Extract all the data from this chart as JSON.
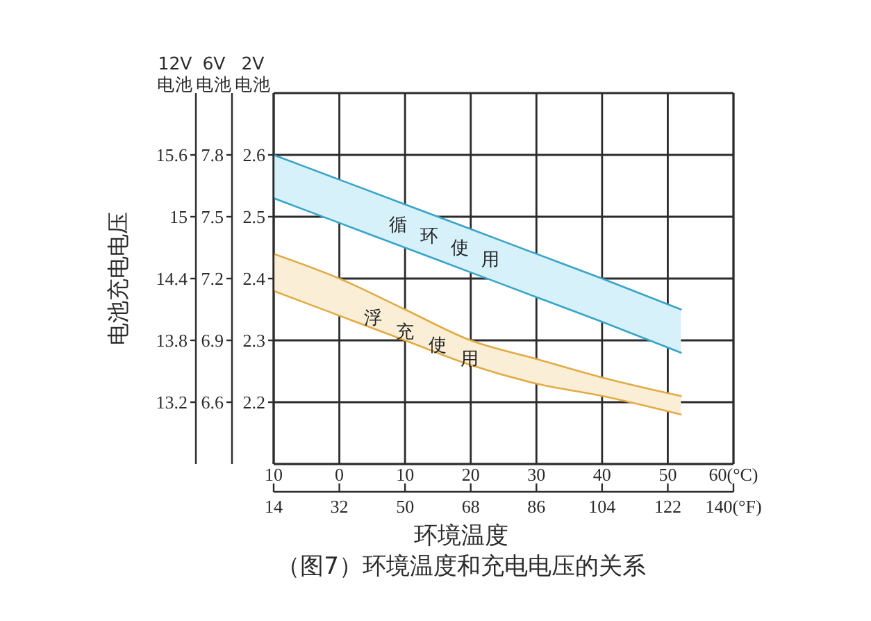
{
  "chart_data": {
    "type": "line",
    "title": "（图7）环境温度和充电电压的关系",
    "xlabel": "环境温度",
    "ylabel": "2V 电池",
    "y2label": "6V 电池",
    "y3label": "12V 电池",
    "annotations": [
      "电池充电电压"
    ],
    "x": [
      -10,
      0,
      10,
      20,
      30,
      40,
      52
    ],
    "series": [
      {
        "name": "循环使用",
        "color": "#38a4c9",
        "values": [
          2.6,
          2.56,
          2.52,
          2.48,
          2.44,
          2.4,
          2.35
        ],
        "lower": [
          2.53,
          2.49,
          2.45,
          2.41,
          2.37,
          2.33,
          2.28
        ],
        "upper": [
          2.6,
          2.56,
          2.52,
          2.48,
          2.44,
          2.4,
          2.35
        ]
      },
      {
        "color": "#38a4c9",
        "values": [
          2.53,
          2.49,
          2.45,
          2.41,
          2.37,
          2.33,
          2.28
        ]
      },
      {
        "name": "浮充使用",
        "color": "#e2ab45",
        "values": [
          2.44,
          2.4,
          2.35,
          2.3,
          2.27,
          2.24,
          2.21
        ],
        "lower": [
          2.38,
          2.34,
          2.3,
          2.26,
          2.23,
          2.21,
          2.18
        ],
        "upper": [
          2.44,
          2.4,
          2.35,
          2.3,
          2.27,
          2.24,
          2.21
        ]
      },
      {
        "color": "#e2ab45",
        "values": [
          2.38,
          2.34,
          2.3,
          2.26,
          2.23,
          2.21,
          2.18
        ]
      }
    ],
    "xlim": [
      -10,
      60
    ],
    "xticks": [
      {
        "value": -10,
        "label": "10"
      },
      0,
      10,
      20,
      30,
      40,
      50,
      {
        "value": 60,
        "label": "60(°C)"
      }
    ],
    "x2lim": [
      14,
      140
    ],
    "x2ticks": [
      14,
      32,
      50,
      68,
      86,
      104,
      122,
      {
        "value": 140,
        "label": "140(°F)"
      }
    ],
    "ylim": [
      2.1,
      2.7
    ],
    "yticks": [
      2.2,
      2.3,
      2.4,
      2.5,
      2.6
    ],
    "y2lim": [
      6.3,
      8.1
    ],
    "y2ticks": [
      6.6,
      6.9,
      7.2,
      7.5,
      7.8
    ],
    "y3lim": [
      12.6,
      16.2
    ],
    "y3ticks": [
      13.2,
      13.8,
      14.4,
      15,
      15.6
    ],
    "grid": true
  }
}
